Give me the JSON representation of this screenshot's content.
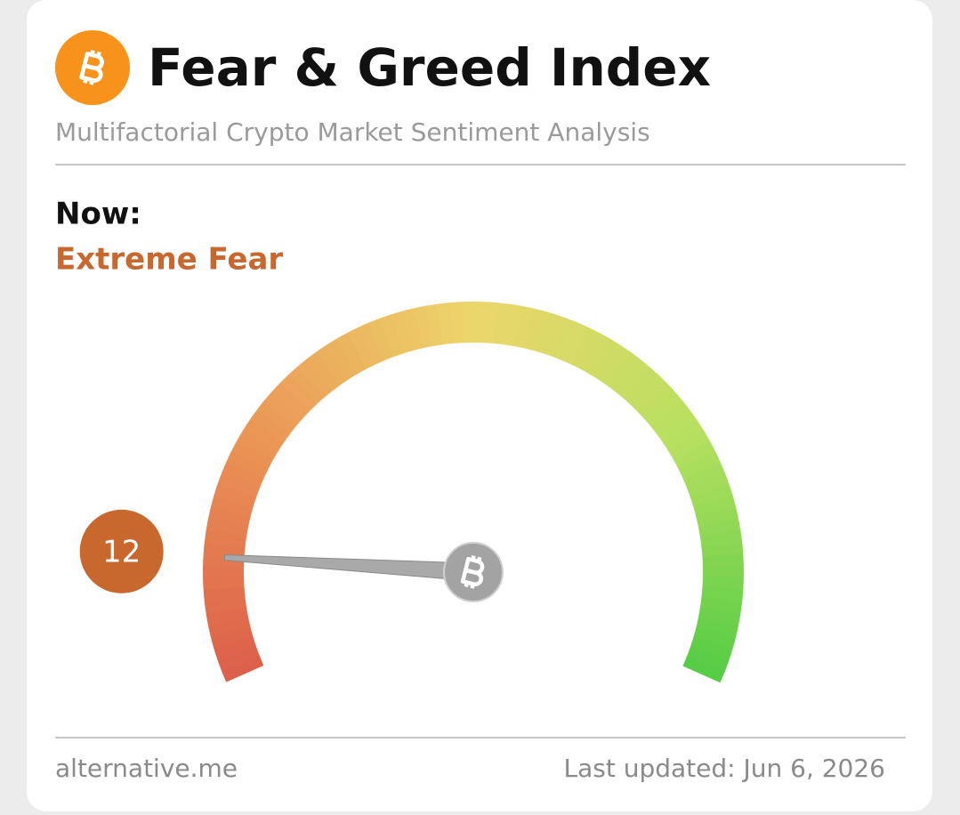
{
  "chart_data": {
    "type": "gauge",
    "title": "Fear & Greed Index",
    "subtitle": "Multifactorial Crypto Market Sentiment Analysis",
    "now_label": "Now:",
    "classification": "Extreme Fear",
    "value": 12,
    "ylim": [
      0,
      100
    ],
    "color": "#c8672e",
    "source": "alternative.me",
    "updated": "Last updated: Jun 6, 2026"
  }
}
